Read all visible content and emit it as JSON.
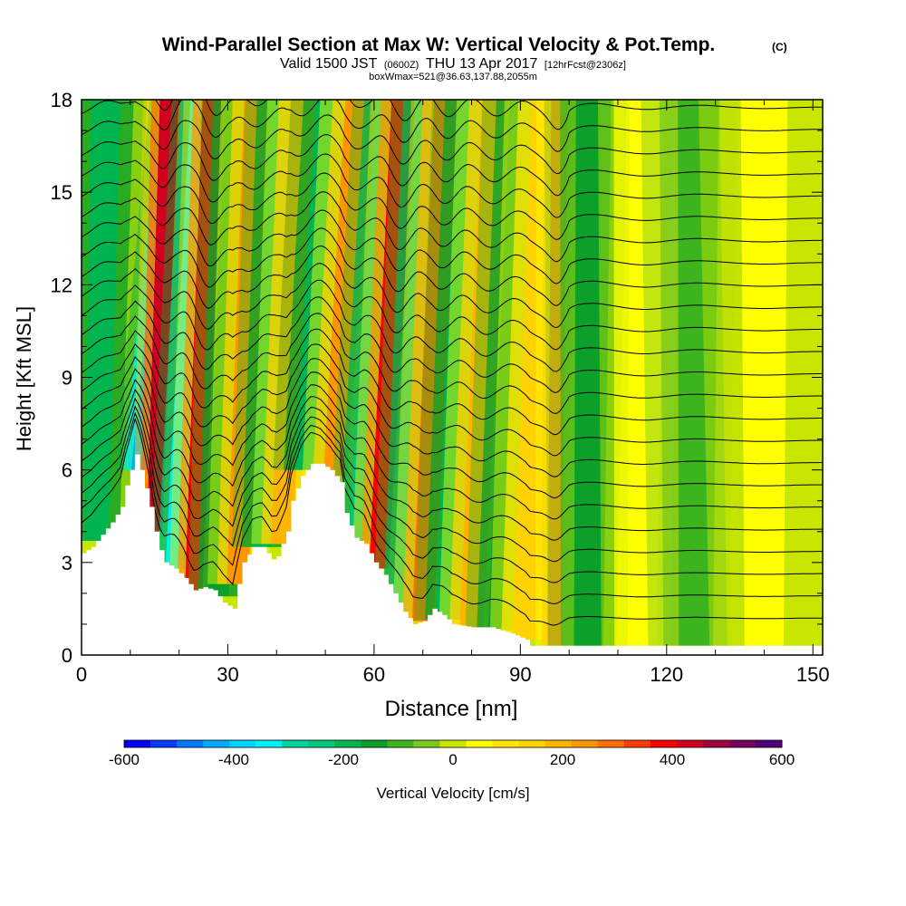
{
  "header": {
    "title": "Wind-Parallel Section at Max W: Vertical Velocity & Pot.Temp.",
    "title_mark": "(C)",
    "line2_prefix": "Valid 1500 JST",
    "line2_utc": "(0600Z)",
    "line2_date": "THU 13 Apr 2017",
    "line2_fcst": "[12hrFcst@2306z]",
    "line3": "boxWmax=521@36.63,137.88,2055m"
  },
  "chart_data": {
    "type": "heatmap",
    "xlabel": "Distance [nm]",
    "ylabel": "Height [Kft MSL]",
    "xlim": [
      0,
      152
    ],
    "ylim": [
      0,
      18
    ],
    "x_ticks": [
      0,
      30,
      60,
      90,
      120,
      150
    ],
    "x_tick_labels": [
      "0",
      "30",
      "60",
      "90",
      "120",
      "150"
    ],
    "y_ticks": [
      0,
      3,
      6,
      9,
      12,
      15,
      18
    ],
    "y_tick_labels": [
      "0",
      "3",
      "6",
      "9",
      "12",
      "15",
      "18"
    ],
    "terrain": [
      [
        0,
        3.3
      ],
      [
        2,
        3.5
      ],
      [
        4,
        3.9
      ],
      [
        6,
        4.3
      ],
      [
        8,
        4.8
      ],
      [
        9,
        5.5
      ],
      [
        10,
        6.0
      ],
      [
        11,
        6.5
      ],
      [
        12,
        6.0
      ],
      [
        13,
        5.4
      ],
      [
        14,
        4.8
      ],
      [
        15,
        4.0
      ],
      [
        16,
        3.4
      ],
      [
        17,
        3.0
      ],
      [
        19,
        2.8
      ],
      [
        21,
        2.5
      ],
      [
        23,
        2.1
      ],
      [
        25,
        2.2
      ],
      [
        27,
        2.1
      ],
      [
        29,
        1.7
      ],
      [
        31,
        1.5
      ],
      [
        32,
        2.3
      ],
      [
        33,
        3.0
      ],
      [
        35,
        3.5
      ],
      [
        37,
        3.5
      ],
      [
        39,
        3.1
      ],
      [
        40,
        3.2
      ],
      [
        42,
        4.0
      ],
      [
        43,
        5.0
      ],
      [
        45,
        5.8
      ],
      [
        47,
        6.2
      ],
      [
        49,
        6.2
      ],
      [
        51,
        6.0
      ],
      [
        53,
        5.6
      ],
      [
        54,
        4.6
      ],
      [
        55,
        4.2
      ],
      [
        56,
        3.8
      ],
      [
        58,
        3.6
      ],
      [
        60,
        3.0
      ],
      [
        62,
        2.6
      ],
      [
        64,
        2.0
      ],
      [
        66,
        1.4
      ],
      [
        68,
        1.0
      ],
      [
        70,
        1.1
      ],
      [
        72,
        1.5
      ],
      [
        74,
        1.3
      ],
      [
        76,
        1.0
      ],
      [
        80,
        0.9
      ],
      [
        84,
        0.9
      ],
      [
        88,
        0.7
      ],
      [
        91,
        0.5
      ],
      [
        92,
        0.3
      ],
      [
        120,
        0.3
      ],
      [
        152,
        0.3
      ]
    ],
    "w_bands": [
      {
        "x0": 3,
        "w": 2.5,
        "top_shift": 2.0,
        "value": -200
      },
      {
        "x0": 12,
        "w": 1.8,
        "top_shift": 8.0,
        "value": -450
      },
      {
        "x0": 15,
        "w": 1.6,
        "top_shift": 3.0,
        "value": 450
      },
      {
        "x0": 19,
        "w": 1.8,
        "top_shift": 5.5,
        "value": -350
      },
      {
        "x0": 23,
        "w": 1.8,
        "top_shift": 4.0,
        "value": 400
      },
      {
        "x0": 28,
        "w": 2.2,
        "top_shift": 4.0,
        "value": -150
      },
      {
        "x0": 32,
        "w": 2.2,
        "top_shift": 4.0,
        "value": 250
      },
      {
        "x0": 37,
        "w": 2.2,
        "top_shift": 4.0,
        "value": -200
      },
      {
        "x0": 41,
        "w": 2.2,
        "top_shift": 4.5,
        "value": 230
      },
      {
        "x0": 46,
        "w": 2.4,
        "top_shift": 5.0,
        "value": -200
      },
      {
        "x0": 52,
        "w": 2.4,
        "top_shift": 5.0,
        "value": 250
      },
      {
        "x0": 57,
        "w": 2.2,
        "top_shift": 6.0,
        "value": -220
      },
      {
        "x0": 61,
        "w": 2.0,
        "top_shift": 5.0,
        "value": 420
      },
      {
        "x0": 66,
        "w": 2.2,
        "top_shift": 5.0,
        "value": -230
      },
      {
        "x0": 70,
        "w": 2.2,
        "top_shift": 5.0,
        "value": 300
      },
      {
        "x0": 75,
        "w": 2.4,
        "top_shift": 5.0,
        "value": -180
      },
      {
        "x0": 80,
        "w": 2.4,
        "top_shift": 5.0,
        "value": 230
      },
      {
        "x0": 86,
        "w": 2.6,
        "top_shift": 5.0,
        "value": -150
      },
      {
        "x0": 91,
        "w": 2.6,
        "top_shift": 4.5,
        "value": 150
      },
      {
        "x0": 97,
        "w": 1.4,
        "top_shift": 1.0,
        "value": 280
      },
      {
        "x0": 104,
        "w": 3.0,
        "top_shift": 1.0,
        "value": -120
      },
      {
        "x0": 115,
        "w": 3.0,
        "top_shift": 1.0,
        "value": 80
      },
      {
        "x0": 126,
        "w": 3.5,
        "top_shift": 0.5,
        "value": -60
      },
      {
        "x0": 140,
        "w": 4.0,
        "top_shift": 0.0,
        "value": 50
      }
    ],
    "colorbar": {
      "label": "Vertical Velocity [cm/s]",
      "min": -600,
      "max": 600,
      "step": 50,
      "tick_values": [
        -600,
        -400,
        -200,
        0,
        200,
        400,
        600
      ],
      "tick_labels": [
        "-600",
        "-400",
        "-200",
        "0",
        "200",
        "400",
        "600"
      ],
      "colors": [
        "#0000ff",
        "#0a3cff",
        "#0078ff",
        "#00aaff",
        "#00d4ff",
        "#00f0f0",
        "#00d2a0",
        "#00c878",
        "#00b450",
        "#0aa02a",
        "#3cb41e",
        "#78c81e",
        "#c8e600",
        "#ffff00",
        "#ffe600",
        "#ffd200",
        "#ffb400",
        "#ff9600",
        "#ff6e00",
        "#ff3c00",
        "#ff0000",
        "#d2001e",
        "#a0003c",
        "#78005a",
        "#500078"
      ]
    },
    "theta_contours": {
      "count": 24,
      "line_color": "#000000"
    }
  }
}
